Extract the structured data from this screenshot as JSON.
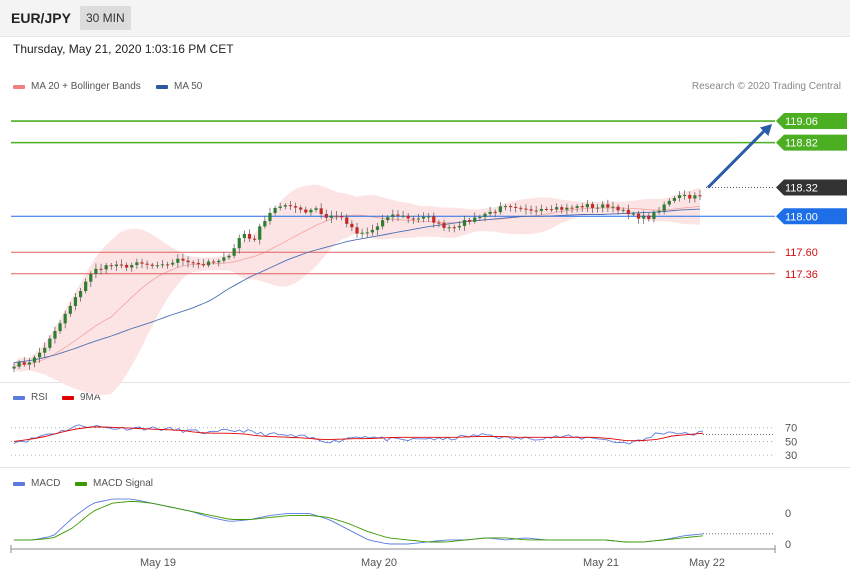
{
  "header": {
    "symbol": "EUR/JPY",
    "timeframe": "30 MIN",
    "timestamp": "Thursday, May 21, 2020 1:03:16 PM CET"
  },
  "legend": {
    "main": [
      {
        "label": "MA 20 + Bollinger Bands",
        "color": "#f08080"
      },
      {
        "label": "MA 50",
        "color": "#2c5aa0"
      }
    ],
    "rsi": [
      {
        "label": "RSI",
        "color": "#5b7be0"
      },
      {
        "label": "9MA",
        "color": "#e00000"
      }
    ],
    "macd": [
      {
        "label": "MACD",
        "color": "#5b7be0"
      },
      {
        "label": "MACD Signal",
        "color": "#3a9a00"
      }
    ],
    "copyright": "Research © 2020 Trading Central"
  },
  "colors": {
    "up": "#2e7d32",
    "down": "#c62828",
    "target": "#4caf22",
    "pivot": "#1e6ee8",
    "support": "#e06060",
    "last": "#333333",
    "band_fill": "#fde4e4",
    "arrow": "#2b5ca8"
  },
  "chart_data": {
    "type": "candlestick",
    "price_axis_range": [
      116.2,
      119.35
    ],
    "x_tick_labels": [
      "May 19",
      "May 20",
      "May 21",
      "May 22"
    ],
    "levels": [
      {
        "value": 119.06,
        "label": "119.06",
        "kind": "target"
      },
      {
        "value": 118.82,
        "label": "118.82",
        "kind": "target"
      },
      {
        "value": 118.32,
        "label": "118.32",
        "kind": "last"
      },
      {
        "value": 118.0,
        "label": "118.00",
        "kind": "pivot"
      },
      {
        "value": 117.6,
        "label": "117.60",
        "kind": "support"
      },
      {
        "value": 117.36,
        "label": "117.36",
        "kind": "support"
      }
    ],
    "close_path": [
      116.35,
      116.36,
      116.42,
      116.55,
      116.72,
      116.92,
      117.1,
      117.3,
      117.42,
      117.45,
      117.44,
      117.45,
      117.47,
      117.45,
      117.43,
      117.48,
      117.52,
      117.5,
      117.46,
      117.48,
      117.5,
      117.62,
      117.82,
      117.72,
      117.95,
      118.1,
      118.1,
      118.12,
      118.05,
      118.1,
      117.98,
      118.02,
      117.92,
      117.8,
      117.82,
      117.88,
      118.0,
      118.02,
      117.98,
      117.98,
      117.98,
      117.9,
      117.88,
      117.92,
      117.96,
      118.02,
      118.05,
      118.1,
      118.08,
      118.06,
      118.08,
      118.1,
      118.1,
      118.08,
      118.1,
      118.12,
      118.1,
      118.12,
      118.1,
      118.02,
      118.0,
      117.98,
      118.05,
      118.18,
      118.25,
      118.22,
      118.22
    ],
    "ma50_path": [
      116.37,
      116.4,
      116.45,
      116.52,
      116.6,
      116.67,
      116.75,
      116.82,
      116.9,
      116.97,
      117.06,
      117.2,
      117.32,
      117.42,
      117.52,
      117.6,
      117.66,
      117.72,
      117.76,
      117.8,
      117.84,
      117.88,
      117.91,
      117.94,
      117.96,
      117.98,
      118.0,
      118.0,
      118.01,
      118.02,
      118.02,
      118.03,
      118.04,
      118.05,
      118.07,
      118.08
    ],
    "rsi_path": [
      50,
      52,
      60,
      64,
      72,
      73,
      70,
      69,
      70,
      69,
      68,
      66,
      64,
      62,
      66,
      66,
      61,
      60,
      58,
      56,
      52,
      50,
      56,
      58,
      54,
      52,
      52,
      55,
      52,
      56,
      58,
      60,
      55,
      54,
      55,
      56,
      57,
      55,
      56,
      50,
      48,
      51,
      62,
      64,
      60,
      63
    ],
    "rsi_ma_path": [
      50,
      53,
      57,
      63,
      68,
      71,
      71,
      70,
      69,
      68,
      67,
      66,
      63,
      62,
      62,
      61,
      58,
      57,
      56,
      55,
      53,
      53,
      54,
      54,
      55,
      56,
      56,
      56,
      56,
      56,
      57,
      57,
      57,
      56,
      56,
      56,
      56,
      56,
      56,
      54,
      51,
      51,
      53,
      58,
      60,
      62
    ],
    "rsi_levels": [
      70,
      50,
      30
    ],
    "rsi_level_labels": [
      "70",
      "50",
      "30"
    ],
    "macd_path": [
      0.0,
      0.0,
      0.02,
      0.11,
      0.18,
      0.2,
      0.2,
      0.18,
      0.16,
      0.14,
      0.11,
      0.09,
      0.1,
      0.12,
      0.13,
      0.13,
      0.1,
      0.05,
      0.0,
      -0.02,
      -0.02,
      -0.01,
      0.0,
      0.0,
      0.01,
      0.0,
      0.01,
      0.0,
      0.0,
      0.0,
      0.0,
      -0.01,
      -0.01,
      0.0,
      0.02,
      0.03
    ],
    "macd_signal_path": [
      0.0,
      0.0,
      0.01,
      0.06,
      0.14,
      0.18,
      0.19,
      0.18,
      0.16,
      0.14,
      0.12,
      0.1,
      0.1,
      0.11,
      0.12,
      0.12,
      0.11,
      0.08,
      0.04,
      0.01,
      0.0,
      -0.01,
      -0.01,
      0.0,
      0.01,
      0.01,
      0.0,
      0.0,
      0.0,
      0.0,
      0.0,
      -0.01,
      -0.01,
      0.0,
      0.01,
      0.02
    ],
    "macd_axis_labels": [
      "0",
      "0"
    ]
  }
}
